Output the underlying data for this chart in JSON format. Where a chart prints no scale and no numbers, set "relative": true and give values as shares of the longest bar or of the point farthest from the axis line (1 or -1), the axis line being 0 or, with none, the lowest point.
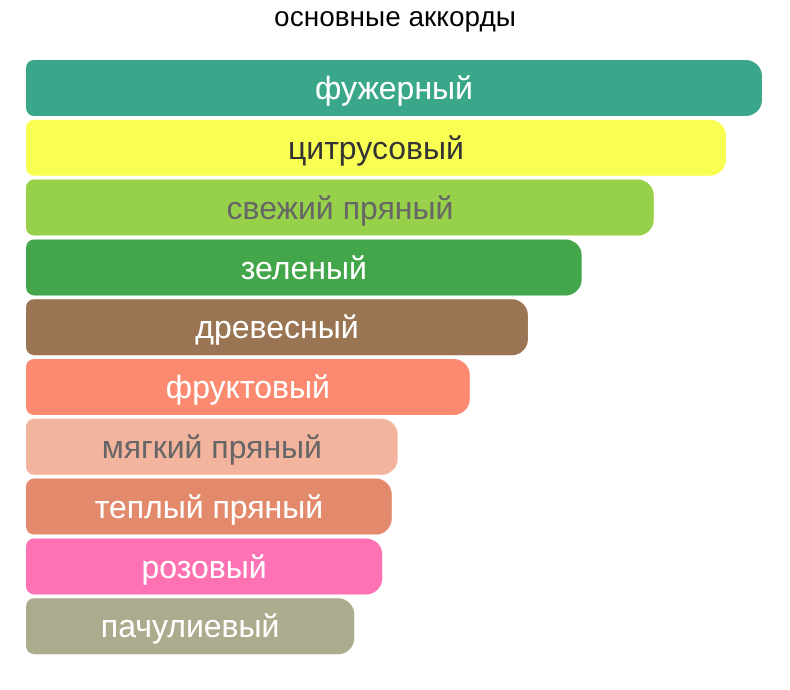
{
  "chart_data": {
    "type": "bar",
    "orientation": "horizontal",
    "relative": true,
    "title": "основные аккорды",
    "categories": [
      "фужерный",
      "цитрусовый",
      "свежий пряный",
      "зеленый",
      "древесный",
      "фруктовый",
      "мягкий пряный",
      "теплый пряный",
      "розовый",
      "пачулиевый"
    ],
    "values": [
      1,
      0.951,
      0.853,
      0.755,
      0.682,
      0.603,
      0.505,
      0.497,
      0.484,
      0.446
    ],
    "colors": [
      "#3aa68a",
      "#f9ff52",
      "#97d14a",
      "#44a64a",
      "#9a7553",
      "#fc8a70",
      "#f2b49c",
      "#e38a6c",
      "#fe72b4",
      "#acab8d"
    ]
  }
}
